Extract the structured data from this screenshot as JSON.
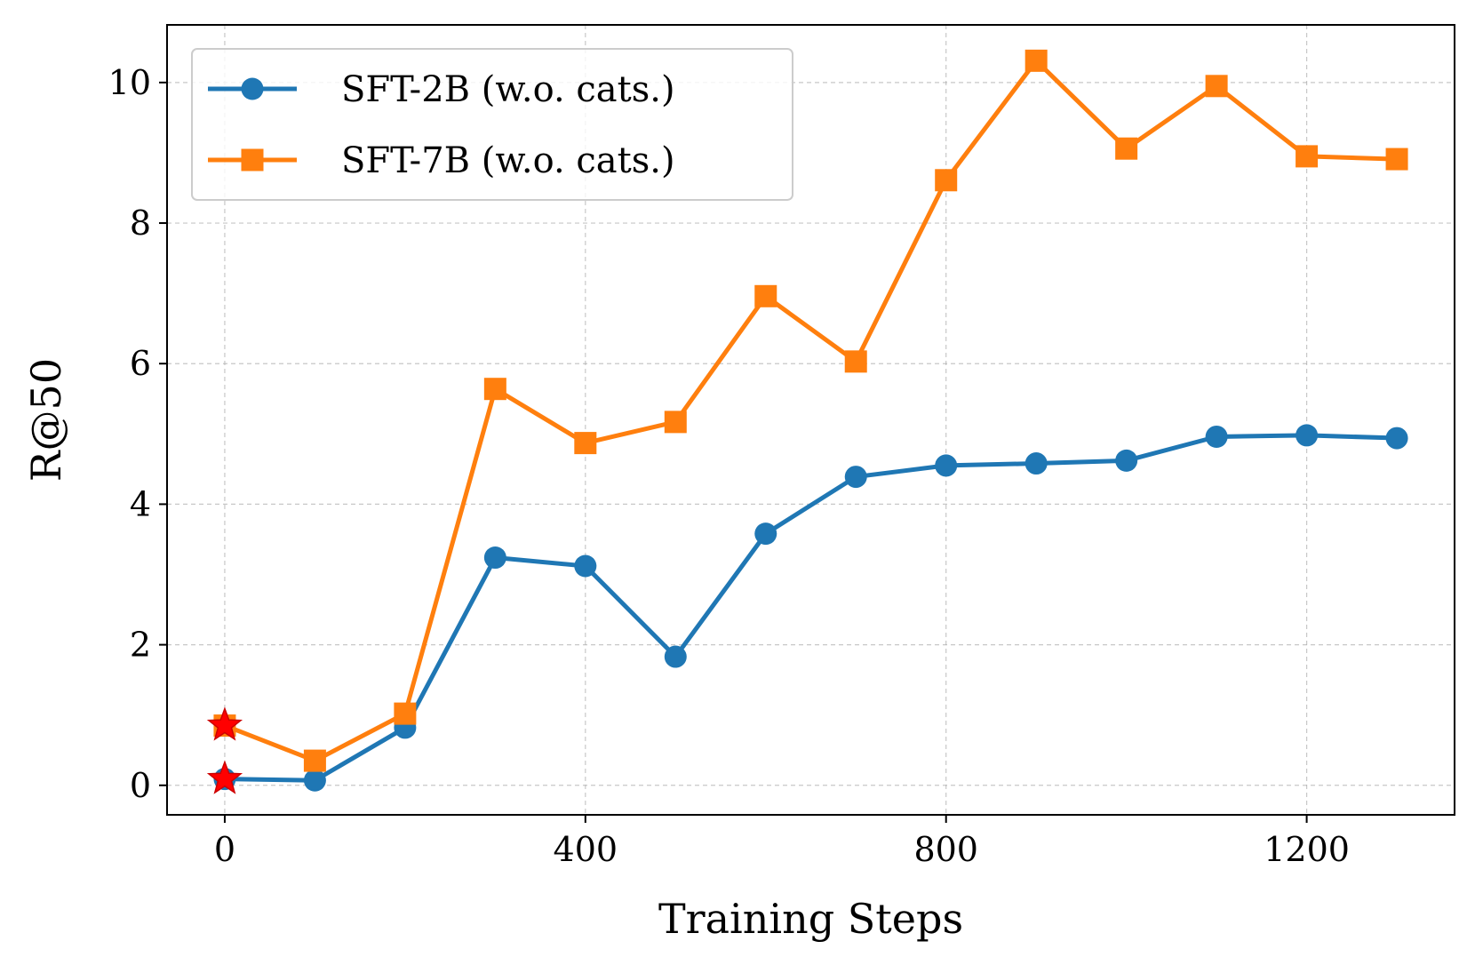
{
  "chart_data": {
    "type": "line",
    "title": "",
    "xlabel": "Training Steps",
    "ylabel": "R@50",
    "xlim": [
      -64,
      1364
    ],
    "ylim": [
      -0.42,
      10.82
    ],
    "xticks": [
      0,
      400,
      800,
      1200
    ],
    "yticks": [
      0,
      2,
      4,
      6,
      8,
      10
    ],
    "grid": true,
    "legend_position": "top-left",
    "x": [
      0,
      100,
      200,
      300,
      400,
      500,
      600,
      700,
      800,
      900,
      1000,
      1100,
      1200,
      1300
    ],
    "series": [
      {
        "name": "SFT-2B (w.o. cats.)",
        "color": "#1f77b4",
        "marker": "circle",
        "values": [
          0.09,
          0.07,
          0.82,
          3.24,
          3.12,
          1.83,
          3.58,
          4.39,
          4.55,
          4.58,
          4.62,
          4.96,
          4.98,
          4.94
        ]
      },
      {
        "name": "SFT-7B (w.o. cats.)",
        "color": "#ff7f0e",
        "marker": "square",
        "values": [
          0.85,
          0.35,
          1.02,
          5.64,
          4.87,
          5.17,
          6.96,
          6.03,
          8.61,
          10.31,
          9.06,
          9.95,
          8.95,
          8.91
        ]
      }
    ],
    "highlight_points": [
      {
        "x": 0,
        "y": 0.09,
        "marker": "star",
        "color": "#ff0000"
      },
      {
        "x": 0,
        "y": 0.85,
        "marker": "star",
        "color": "#ff0000"
      }
    ]
  }
}
